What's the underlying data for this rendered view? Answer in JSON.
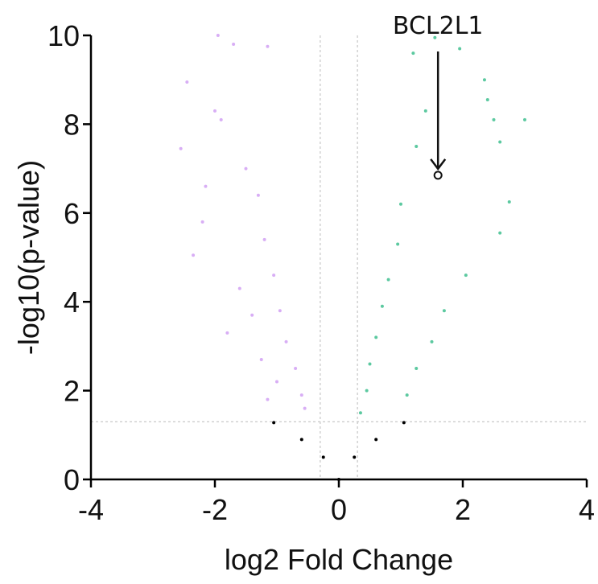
{
  "chart_data": {
    "type": "scatter",
    "title": "",
    "xlabel": "log2 Fold Change",
    "ylabel": "-log10(p-value)",
    "xlim": [
      -4,
      4
    ],
    "ylim": [
      0,
      10
    ],
    "x_ticks": [
      "-4",
      "-2",
      "0",
      "2",
      "4"
    ],
    "y_ticks": [
      "0",
      "2",
      "4",
      "6",
      "8",
      "10"
    ],
    "grid": false,
    "thresholds": {
      "log2fc": [
        -0.3,
        0.3
      ],
      "neg_log10_p": 1.3
    },
    "colors": {
      "up": "#5cc9a0",
      "down": "#d8aef5",
      "not_significant": "#000000",
      "threshold_line": "#bbbbbb"
    },
    "series": [
      {
        "group": "down",
        "points": [
          [
            -2.45,
            8.95
          ],
          [
            -2.55,
            7.45
          ],
          [
            -1.95,
            10.0
          ],
          [
            -1.7,
            9.8
          ],
          [
            -1.15,
            9.75
          ],
          [
            -2.0,
            8.3
          ],
          [
            -1.9,
            8.1
          ],
          [
            -2.15,
            6.6
          ],
          [
            -2.2,
            5.8
          ],
          [
            -2.35,
            5.05
          ],
          [
            -1.5,
            7.0
          ],
          [
            -1.3,
            6.4
          ],
          [
            -1.2,
            5.4
          ],
          [
            -1.05,
            4.6
          ],
          [
            -0.95,
            3.8
          ],
          [
            -0.85,
            3.1
          ],
          [
            -0.7,
            2.5
          ],
          [
            -0.6,
            1.9
          ],
          [
            -0.55,
            1.6
          ],
          [
            -1.6,
            4.3
          ],
          [
            -1.4,
            3.7
          ],
          [
            -1.8,
            3.3
          ],
          [
            -1.25,
            2.7
          ],
          [
            -1.0,
            2.2
          ],
          [
            -1.15,
            1.8
          ]
        ]
      },
      {
        "group": "up",
        "points": [
          [
            1.55,
            9.95
          ],
          [
            1.2,
            9.6
          ],
          [
            1.95,
            9.7
          ],
          [
            2.35,
            9.0
          ],
          [
            2.5,
            8.1
          ],
          [
            3.0,
            8.1
          ],
          [
            2.4,
            8.55
          ],
          [
            2.6,
            7.6
          ],
          [
            1.4,
            8.3
          ],
          [
            1.25,
            7.5
          ],
          [
            1.0,
            6.2
          ],
          [
            0.95,
            5.3
          ],
          [
            0.8,
            4.5
          ],
          [
            0.7,
            3.9
          ],
          [
            0.6,
            3.2
          ],
          [
            0.5,
            2.6
          ],
          [
            0.45,
            2.0
          ],
          [
            0.35,
            1.5
          ],
          [
            2.75,
            6.25
          ],
          [
            2.6,
            5.55
          ],
          [
            2.05,
            4.6
          ],
          [
            1.7,
            3.8
          ],
          [
            1.5,
            3.1
          ],
          [
            1.25,
            2.5
          ],
          [
            1.1,
            1.9
          ]
        ]
      },
      {
        "group": "not_significant",
        "points": [
          [
            0.0,
            0.0
          ],
          [
            -0.25,
            0.5
          ],
          [
            0.25,
            0.5
          ],
          [
            -0.6,
            0.9
          ],
          [
            0.6,
            0.9
          ],
          [
            -1.05,
            1.28
          ],
          [
            1.05,
            1.28
          ]
        ]
      }
    ],
    "highlighted_point": {
      "label": "BCL2L1",
      "x": 1.6,
      "y": 6.85
    }
  }
}
